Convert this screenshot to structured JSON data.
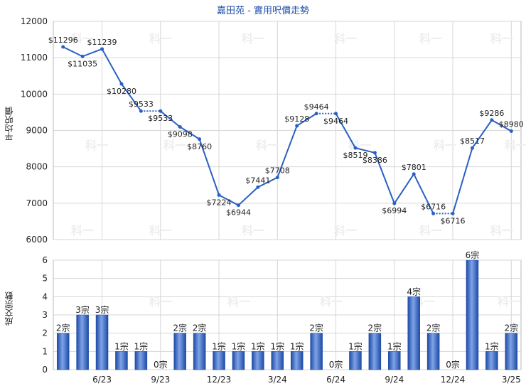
{
  "chart_data": [
    {
      "type": "line",
      "title": "嘉田苑 - 實用呎價走勢",
      "ylabel": "平均呎價",
      "ylim": [
        6000,
        12000
      ],
      "yticks": [
        6000,
        7000,
        8000,
        9000,
        10000,
        11000,
        12000
      ],
      "grid": true,
      "points": [
        {
          "x": 0,
          "y": 11296,
          "label": "$11296"
        },
        {
          "x": 1,
          "y": 11035,
          "label": "$11035"
        },
        {
          "x": 2,
          "y": 11239,
          "label": "$11239"
        },
        {
          "x": 3,
          "y": 10280,
          "label": "$10280"
        },
        {
          "x": 4,
          "y": 9533,
          "label": "$9533"
        },
        {
          "x": 5,
          "y": 9533,
          "label": "$9533"
        },
        {
          "x": 6,
          "y": 9098,
          "label": "$9098"
        },
        {
          "x": 7,
          "y": 8760,
          "label": "$8760"
        },
        {
          "x": 8,
          "y": 7224,
          "label": "$7224"
        },
        {
          "x": 9,
          "y": 6944,
          "label": "$6944"
        },
        {
          "x": 10,
          "y": 7441,
          "label": "$7441"
        },
        {
          "x": 11,
          "y": 7708,
          "label": "$7708"
        },
        {
          "x": 12,
          "y": 9128,
          "label": "$9128"
        },
        {
          "x": 13,
          "y": 9464,
          "label": "$9464"
        },
        {
          "x": 14,
          "y": 9464,
          "label": "$9464"
        },
        {
          "x": 15,
          "y": 8519,
          "label": "$8519"
        },
        {
          "x": 16,
          "y": 8386,
          "label": "$8386"
        },
        {
          "x": 17,
          "y": 6994,
          "label": "$6994"
        },
        {
          "x": 18,
          "y": 7801,
          "label": "$7801"
        },
        {
          "x": 19,
          "y": 6716,
          "label": "$6716"
        },
        {
          "x": 20,
          "y": 6716,
          "label": "$6716"
        },
        {
          "x": 21,
          "y": 8517,
          "label": "$8517"
        },
        {
          "x": 22,
          "y": 9286,
          "label": "$9286"
        },
        {
          "x": 23,
          "y": 8980,
          "label": "$8980"
        }
      ],
      "dotted_segments": [
        [
          4,
          5
        ],
        [
          13,
          14
        ],
        [
          19,
          20
        ]
      ],
      "color": "#2a5fc4"
    },
    {
      "type": "bar",
      "ylabel": "成交宗數",
      "ylim": [
        0,
        6
      ],
      "yticks": [
        0,
        1,
        2,
        3,
        4,
        5,
        6
      ],
      "grid": true,
      "values": [
        2,
        3,
        3,
        1,
        1,
        0,
        2,
        2,
        1,
        1,
        1,
        1,
        1,
        2,
        0,
        1,
        2,
        1,
        4,
        2,
        0,
        6,
        1,
        2
      ],
      "value_suffix": "宗",
      "x_tick_labels": [
        {
          "at": 2,
          "label": "6/23"
        },
        {
          "at": 5,
          "label": "9/23"
        },
        {
          "at": 8,
          "label": "12/23"
        },
        {
          "at": 11,
          "label": "3/24"
        },
        {
          "at": 14,
          "label": "6/24"
        },
        {
          "at": 17,
          "label": "9/24"
        },
        {
          "at": 20,
          "label": "12/24"
        },
        {
          "at": 23,
          "label": "3/25"
        }
      ],
      "color": "#2a5fc4"
    }
  ],
  "watermark": "科一"
}
